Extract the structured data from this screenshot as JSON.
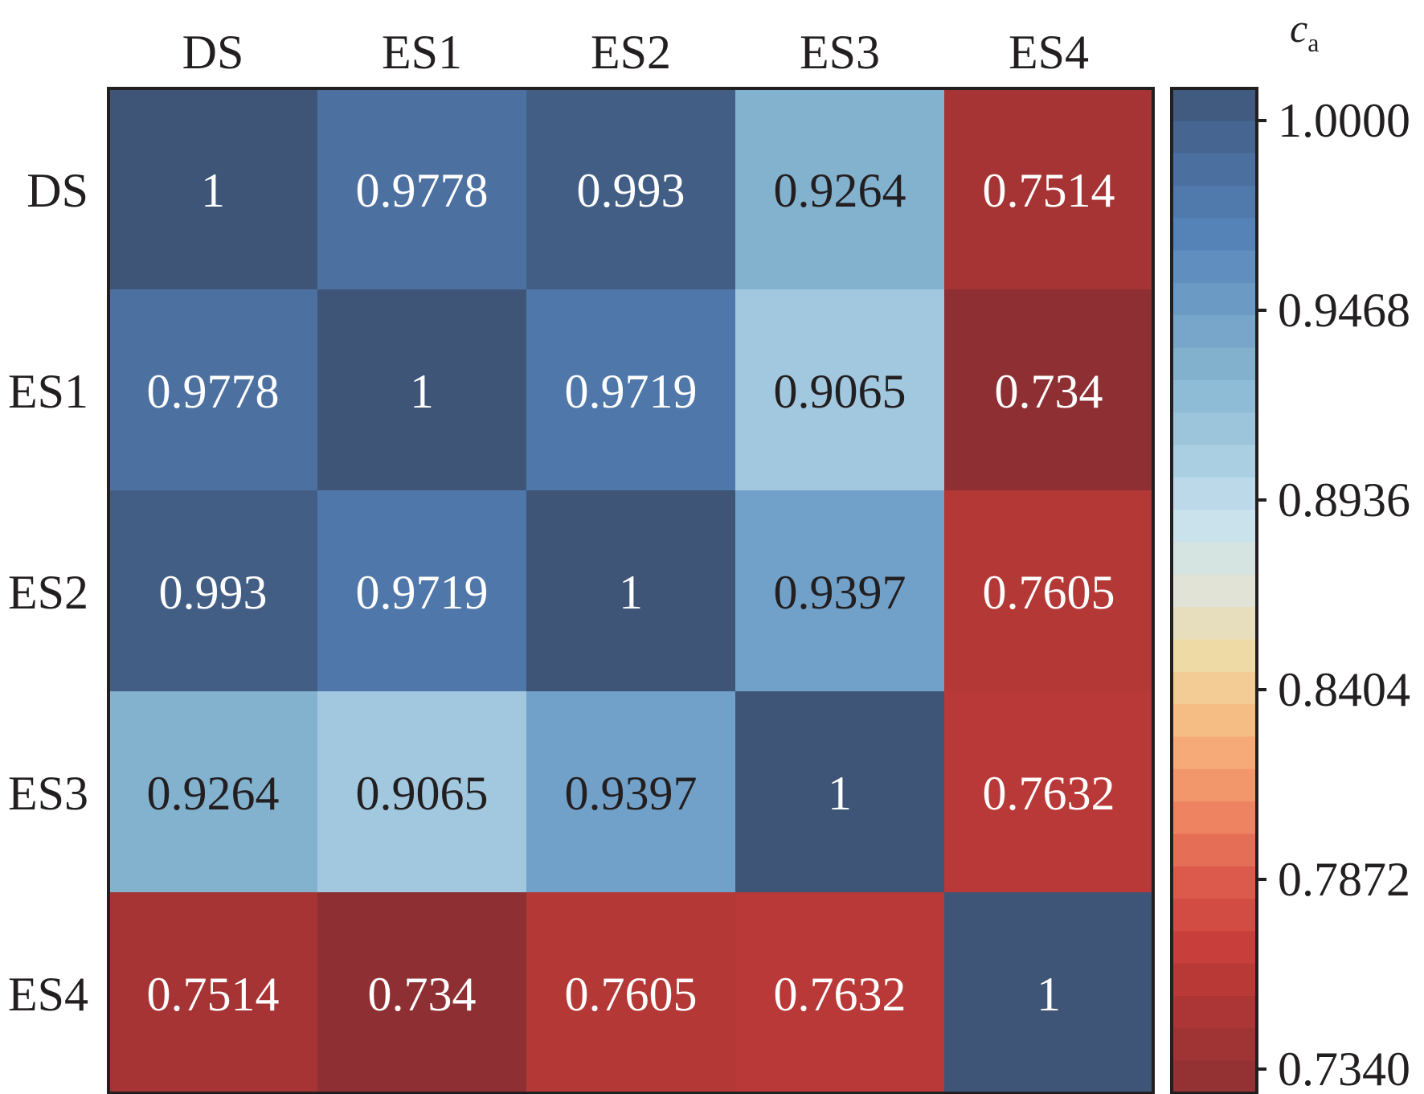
{
  "chart_data": {
    "type": "heatmap",
    "title": "",
    "x_labels": [
      "DS",
      "ES1",
      "ES2",
      "ES3",
      "ES4"
    ],
    "y_labels": [
      "DS",
      "ES1",
      "ES2",
      "ES3",
      "ES4"
    ],
    "values": [
      [
        1,
        0.9778,
        0.993,
        0.9264,
        0.7514
      ],
      [
        0.9778,
        1,
        0.9719,
        0.9065,
        0.734
      ],
      [
        0.993,
        0.9719,
        1,
        0.9397,
        0.7605
      ],
      [
        0.9264,
        0.9065,
        0.9397,
        1,
        0.7632
      ],
      [
        0.7514,
        0.734,
        0.7605,
        0.7632,
        1
      ]
    ],
    "value_labels": [
      [
        "1",
        "0.9778",
        "0.993",
        "0.9264",
        "0.7514"
      ],
      [
        "0.9778",
        "1",
        "0.9719",
        "0.9065",
        "0.734"
      ],
      [
        "0.993",
        "0.9719",
        "1",
        "0.9397",
        "0.7605"
      ],
      [
        "0.9264",
        "0.9065",
        "0.9397",
        "1",
        "0.7632"
      ],
      [
        "0.7514",
        "0.734",
        "0.7605",
        "0.7632",
        "1"
      ]
    ],
    "colorbar": {
      "label_main": "c",
      "label_sub": "a",
      "range": [
        0.734,
        1.0
      ],
      "ticks": [
        "1.0000",
        "0.9468",
        "0.8936",
        "0.8404",
        "0.7872",
        "0.7340"
      ],
      "colormap": [
        "#3f5577",
        "#4a6d9c",
        "#5482b8",
        "#6d9dc6",
        "#86b5d0",
        "#a3cae0",
        "#c8e2ee",
        "#e0e3d6",
        "#efd9a0",
        "#f7b57d",
        "#f08a65",
        "#de5c4d",
        "#c63d39",
        "#a83434",
        "#8e3033"
      ]
    }
  }
}
